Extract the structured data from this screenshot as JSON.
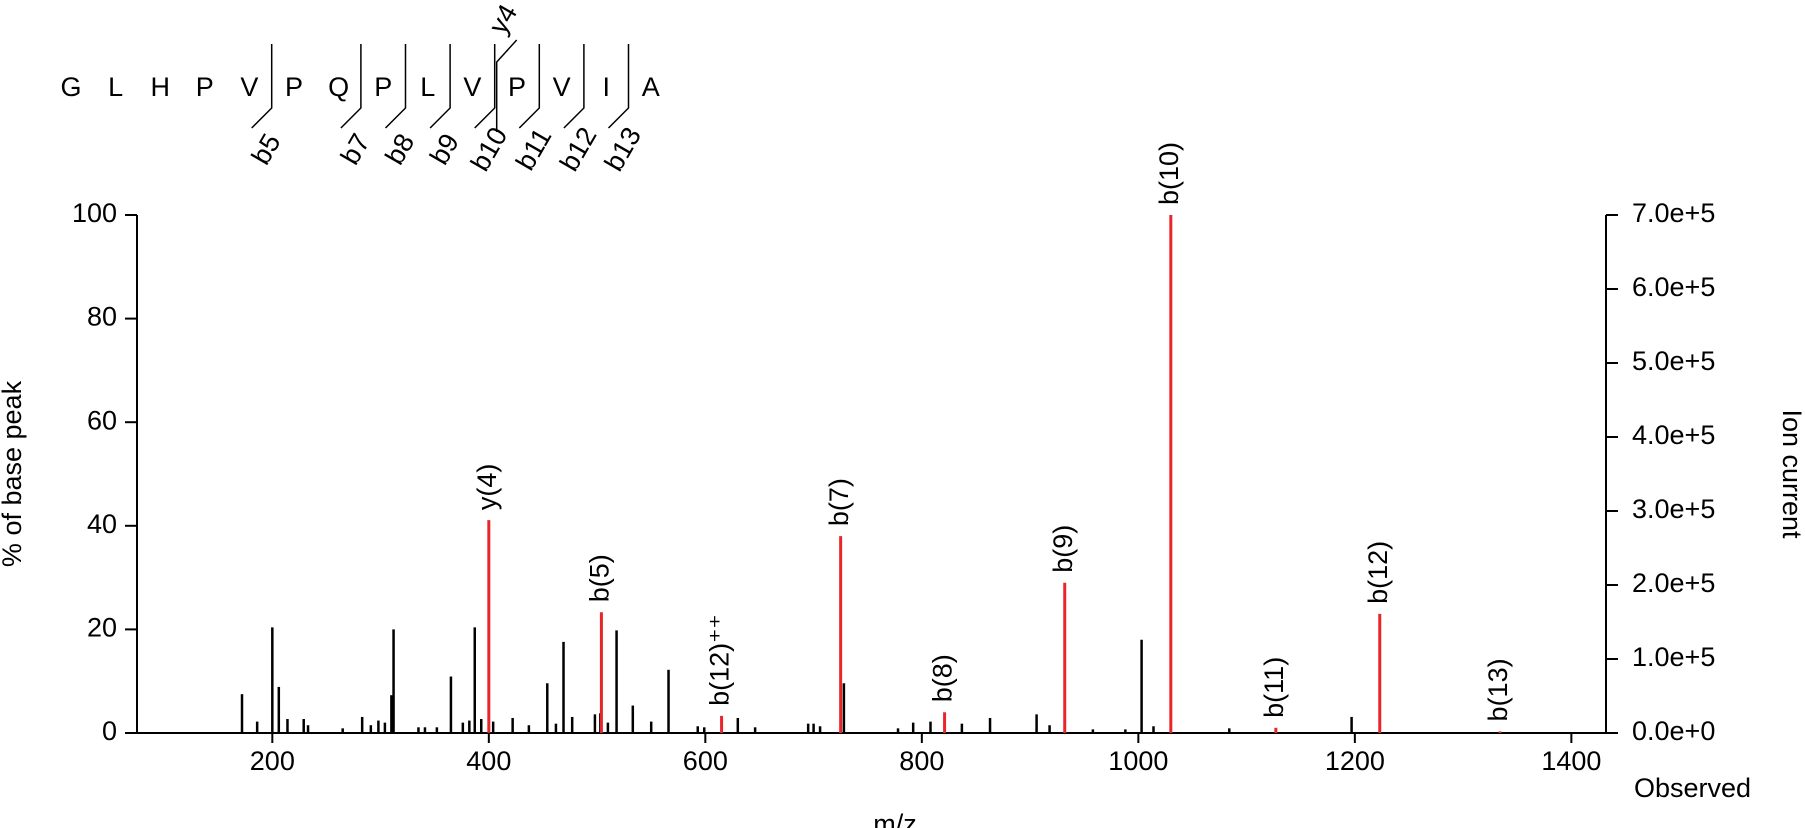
{
  "chart_data": {
    "type": "spectrum",
    "sequence": [
      "G",
      "L",
      "H",
      "P",
      "V",
      "P",
      "Q",
      "P",
      "L",
      "V",
      "P",
      "V",
      "I",
      "A"
    ],
    "b_ions": [
      null,
      null,
      null,
      null,
      "b5",
      null,
      "b7",
      "b8",
      "b9",
      "b10",
      "b11",
      "b12",
      "b13",
      null
    ],
    "y_ions": [
      null,
      null,
      null,
      null,
      null,
      null,
      null,
      null,
      null,
      "y4",
      null,
      null,
      null,
      null
    ],
    "x_label": "m/z",
    "y_label": "% of base peak",
    "y2_label": "Ion current",
    "corner_label": "Observed",
    "xlim": [
      75,
      1432
    ],
    "xticks": [
      200,
      400,
      600,
      800,
      1000,
      1200,
      1400
    ],
    "ylim": [
      0,
      100
    ],
    "yticks": [
      0,
      20,
      40,
      60,
      80,
      100
    ],
    "y2lim": [
      0,
      700000
    ],
    "y2ticks": [
      {
        "value": 0,
        "label": "0.0e+0"
      },
      {
        "value": 100000,
        "label": "1.0e+5"
      },
      {
        "value": 200000,
        "label": "2.0e+5"
      },
      {
        "value": 300000,
        "label": "3.0e+5"
      },
      {
        "value": 400000,
        "label": "4.0e+5"
      },
      {
        "value": 500000,
        "label": "5.0e+5"
      },
      {
        "value": 600000,
        "label": "6.0e+5"
      },
      {
        "value": 700000,
        "label": "7.0e+5"
      }
    ],
    "series": [
      {
        "color": "#000000",
        "x": [
          172,
          186,
          200,
          206,
          214,
          229,
          233,
          265,
          283,
          291,
          298,
          304,
          310,
          312,
          335,
          341,
          352,
          365,
          376,
          382,
          387,
          393,
          404,
          422,
          437,
          454,
          462,
          469,
          477,
          498,
          503,
          510,
          518,
          533,
          550,
          566,
          593,
          599,
          630,
          646,
          695,
          700,
          706,
          728,
          778,
          792,
          808,
          837,
          863,
          906,
          918,
          958,
          988,
          1003,
          1014,
          1084,
          1197
        ],
        "values": [
          7.5,
          2.2,
          20.4,
          8.9,
          2.7,
          2.7,
          1.5,
          0.9,
          3.1,
          1.5,
          2.4,
          2,
          7.3,
          20,
          1.1,
          1.1,
          1.1,
          10.9,
          2,
          2.4,
          20.4,
          2.7,
          2.2,
          2.9,
          1.5,
          9.6,
          1.8,
          17.6,
          3.1,
          3.6,
          3.8,
          2,
          19.8,
          5.3,
          2.2,
          12.2,
          1.3,
          1.1,
          2.9,
          1.1,
          1.8,
          1.8,
          1.3,
          9.6,
          0.9,
          2,
          2.2,
          1.8,
          2.9,
          3.6,
          1.5,
          0.7,
          0.7,
          18,
          1.3,
          0.9,
          3.1
        ]
      },
      {
        "color": "#e8262a",
        "x": [
          400,
          504,
          615,
          725,
          821,
          932,
          1030,
          1127,
          1223,
          1334
        ],
        "values": [
          41.1,
          23.3,
          3.3,
          38,
          4,
          29,
          100,
          1,
          23,
          0.3
        ],
        "labels": [
          "y(4)",
          "b(5)",
          "b(12)⁺⁺",
          "b(7)",
          "b(8)",
          "b(9)",
          "b(10)",
          "b(11)",
          "b(12)",
          "b(13)"
        ]
      }
    ]
  }
}
